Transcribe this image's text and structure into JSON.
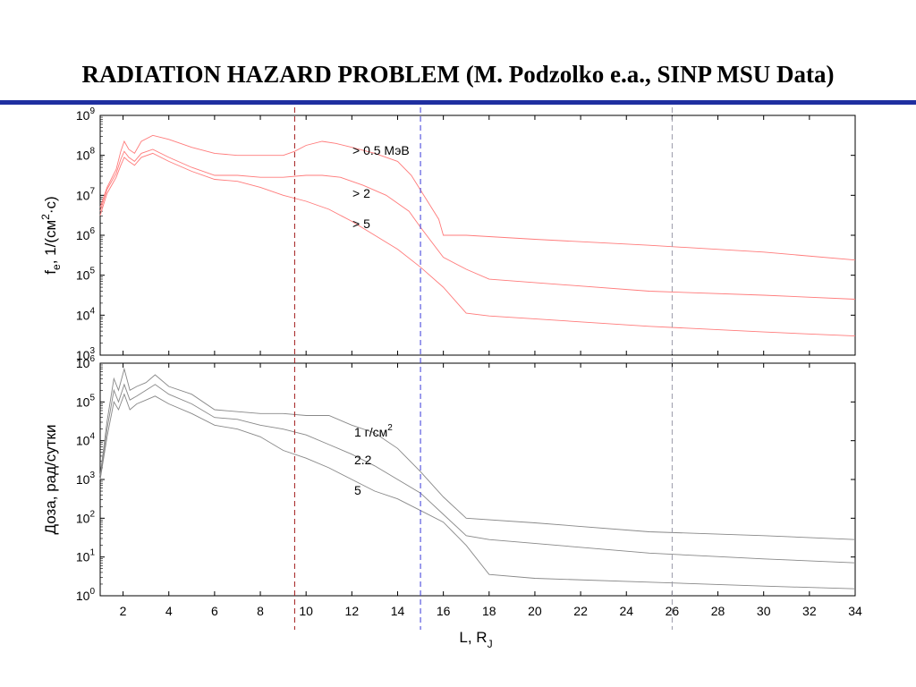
{
  "slide": {
    "title": "RADIATION HAZARD PROBLEM (M. Podzolko e.a., SINP MSU Data)",
    "rule_color": "#1f2fa0"
  },
  "chart_data": [
    {
      "type": "line",
      "ylabel": "f_e, 1/(см^2·с)",
      "ylabel_parts": [
        "f",
        "e",
        ", 1/(см",
        "2",
        "·с)"
      ],
      "yscale": "log",
      "ylim_exp": [
        3,
        9
      ],
      "ytick_labels": [
        "10^3",
        "10^4",
        "10^5",
        "10^6",
        "10^7",
        "10^8",
        "10^9"
      ],
      "xlim": [
        1,
        34
      ],
      "line_color": "#ff7b7b",
      "series": [
        {
          "name": "> 0.5 МэВ",
          "points": [
            [
              1.0,
              6.7
            ],
            [
              1.3,
              7.2
            ],
            [
              1.7,
              7.65
            ],
            [
              1.9,
              8.1
            ],
            [
              2.05,
              8.35
            ],
            [
              2.25,
              8.15
            ],
            [
              2.5,
              8.05
            ],
            [
              2.8,
              8.35
            ],
            [
              3.3,
              8.5
            ],
            [
              4.0,
              8.4
            ],
            [
              5.0,
              8.2
            ],
            [
              6.0,
              8.05
            ],
            [
              7.0,
              8.0
            ],
            [
              8.0,
              8.0
            ],
            [
              9.0,
              8.0
            ],
            [
              9.5,
              8.1
            ],
            [
              10.0,
              8.25
            ],
            [
              10.7,
              8.35
            ],
            [
              11.3,
              8.3
            ],
            [
              12.0,
              8.2
            ],
            [
              13.0,
              8.05
            ],
            [
              14.0,
              7.85
            ],
            [
              14.6,
              7.5
            ],
            [
              15.2,
              6.95
            ],
            [
              15.8,
              6.4
            ],
            [
              16.0,
              6.0
            ],
            [
              17.0,
              6.0
            ],
            [
              20.0,
              5.9
            ],
            [
              25.0,
              5.75
            ],
            [
              30.0,
              5.58
            ],
            [
              34.0,
              5.38
            ]
          ]
        },
        {
          "name": "> 2",
          "points": [
            [
              1.0,
              6.6
            ],
            [
              1.3,
              7.15
            ],
            [
              1.7,
              7.55
            ],
            [
              1.9,
              7.9
            ],
            [
              2.05,
              8.1
            ],
            [
              2.25,
              7.95
            ],
            [
              2.5,
              7.85
            ],
            [
              2.8,
              8.05
            ],
            [
              3.3,
              8.15
            ],
            [
              4.0,
              7.95
            ],
            [
              5.0,
              7.7
            ],
            [
              6.0,
              7.5
            ],
            [
              7.0,
              7.5
            ],
            [
              8.0,
              7.45
            ],
            [
              9.0,
              7.45
            ],
            [
              10.0,
              7.5
            ],
            [
              10.7,
              7.5
            ],
            [
              11.5,
              7.45
            ],
            [
              12.5,
              7.25
            ],
            [
              13.5,
              7.0
            ],
            [
              14.5,
              6.6
            ],
            [
              15.0,
              6.2
            ],
            [
              16.0,
              5.45
            ],
            [
              17.0,
              5.15
            ],
            [
              18.0,
              4.9
            ],
            [
              25.0,
              4.6
            ],
            [
              30.0,
              4.5
            ],
            [
              34.0,
              4.4
            ]
          ]
        },
        {
          "name": "> 5",
          "points": [
            [
              1.0,
              6.5
            ],
            [
              1.3,
              7.05
            ],
            [
              1.7,
              7.45
            ],
            [
              1.9,
              7.75
            ],
            [
              2.05,
              7.95
            ],
            [
              2.25,
              7.85
            ],
            [
              2.5,
              7.75
            ],
            [
              2.8,
              7.95
            ],
            [
              3.3,
              8.05
            ],
            [
              4.0,
              7.85
            ],
            [
              5.0,
              7.6
            ],
            [
              6.0,
              7.4
            ],
            [
              7.0,
              7.35
            ],
            [
              8.0,
              7.2
            ],
            [
              9.0,
              7.0
            ],
            [
              10.0,
              6.85
            ],
            [
              11.0,
              6.65
            ],
            [
              12.0,
              6.35
            ],
            [
              13.0,
              6.0
            ],
            [
              14.0,
              5.65
            ],
            [
              15.0,
              5.2
            ],
            [
              16.0,
              4.7
            ],
            [
              17.0,
              4.05
            ],
            [
              18.0,
              3.98
            ],
            [
              25.0,
              3.72
            ],
            [
              30.0,
              3.58
            ],
            [
              34.0,
              3.48
            ]
          ]
        }
      ]
    },
    {
      "type": "line",
      "ylabel": "Доза, рад/сутки",
      "yscale": "log",
      "ylim_exp": [
        0,
        6
      ],
      "ytick_labels": [
        "10^0",
        "10^1",
        "10^2",
        "10^3",
        "10^4",
        "10^5",
        "10^6"
      ],
      "xlabel": "L, R_J",
      "xlabel_parts": [
        "L, R",
        "J"
      ],
      "xlim": [
        1,
        34
      ],
      "xticks": [
        2,
        4,
        6,
        8,
        10,
        12,
        14,
        16,
        18,
        20,
        22,
        24,
        26,
        28,
        30,
        32,
        34
      ],
      "line_color": "#888888",
      "series": [
        {
          "name": "1 г/см^2",
          "name_parts": [
            "1 г/см",
            "2"
          ],
          "points": [
            [
              1.0,
              3.1
            ],
            [
              1.3,
              4.5
            ],
            [
              1.6,
              5.6
            ],
            [
              1.8,
              5.3
            ],
            [
              2.05,
              5.85
            ],
            [
              2.3,
              5.3
            ],
            [
              2.6,
              5.4
            ],
            [
              3.0,
              5.5
            ],
            [
              3.4,
              5.7
            ],
            [
              4.0,
              5.4
            ],
            [
              5.0,
              5.2
            ],
            [
              6.0,
              4.8
            ],
            [
              7.0,
              4.75
            ],
            [
              8.0,
              4.7
            ],
            [
              9.0,
              4.7
            ],
            [
              10.0,
              4.65
            ],
            [
              11.0,
              4.65
            ],
            [
              12.0,
              4.4
            ],
            [
              13.0,
              4.2
            ],
            [
              14.0,
              3.8
            ],
            [
              15.0,
              3.2
            ],
            [
              16.0,
              2.55
            ],
            [
              17.0,
              2.0
            ],
            [
              20.0,
              1.88
            ],
            [
              25.0,
              1.65
            ],
            [
              30.0,
              1.55
            ],
            [
              34.0,
              1.45
            ]
          ]
        },
        {
          "name": "2.2",
          "points": [
            [
              1.0,
              3.0
            ],
            [
              1.3,
              4.3
            ],
            [
              1.6,
              5.3
            ],
            [
              1.8,
              5.0
            ],
            [
              2.05,
              5.45
            ],
            [
              2.3,
              5.05
            ],
            [
              2.6,
              5.15
            ],
            [
              3.0,
              5.3
            ],
            [
              3.4,
              5.45
            ],
            [
              4.0,
              5.2
            ],
            [
              5.0,
              4.95
            ],
            [
              6.0,
              4.6
            ],
            [
              7.0,
              4.55
            ],
            [
              8.0,
              4.4
            ],
            [
              9.0,
              4.3
            ],
            [
              10.0,
              4.15
            ],
            [
              11.0,
              3.9
            ],
            [
              12.0,
              3.65
            ],
            [
              13.0,
              3.35
            ],
            [
              14.0,
              3.0
            ],
            [
              15.0,
              2.65
            ],
            [
              16.0,
              2.1
            ],
            [
              17.0,
              1.55
            ],
            [
              18.0,
              1.45
            ],
            [
              25.0,
              1.1
            ],
            [
              30.0,
              0.95
            ],
            [
              34.0,
              0.85
            ]
          ]
        },
        {
          "name": "5",
          "points": [
            [
              1.0,
              3.0
            ],
            [
              1.3,
              4.1
            ],
            [
              1.6,
              5.0
            ],
            [
              1.8,
              4.8
            ],
            [
              2.05,
              5.2
            ],
            [
              2.3,
              4.8
            ],
            [
              2.6,
              4.95
            ],
            [
              3.0,
              5.05
            ],
            [
              3.4,
              5.15
            ],
            [
              4.0,
              4.95
            ],
            [
              5.0,
              4.7
            ],
            [
              6.0,
              4.4
            ],
            [
              7.0,
              4.3
            ],
            [
              8.0,
              4.1
            ],
            [
              9.0,
              3.75
            ],
            [
              10.0,
              3.55
            ],
            [
              11.0,
              3.3
            ],
            [
              12.0,
              3.0
            ],
            [
              13.0,
              2.7
            ],
            [
              14.0,
              2.5
            ],
            [
              15.0,
              2.2
            ],
            [
              16.0,
              1.9
            ],
            [
              17.0,
              1.3
            ],
            [
              18.0,
              0.55
            ],
            [
              20.0,
              0.45
            ],
            [
              25.0,
              0.35
            ],
            [
              30.0,
              0.25
            ],
            [
              34.0,
              0.18
            ]
          ]
        }
      ]
    }
  ],
  "vertical_markers": [
    {
      "x": 9.5,
      "color": "#a01818"
    },
    {
      "x": 15.0,
      "color": "#3a3ad8"
    },
    {
      "x": 26.0,
      "color": "#9a9aa8"
    }
  ]
}
